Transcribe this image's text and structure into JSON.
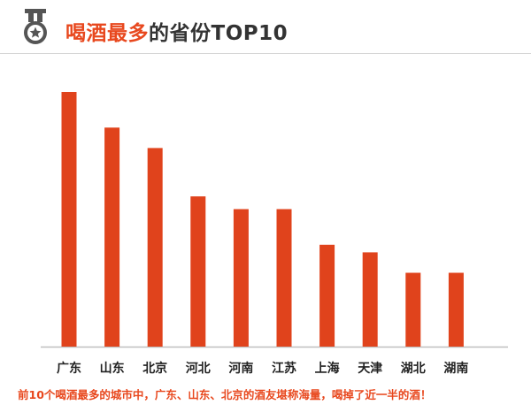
{
  "header": {
    "title_accent": "喝酒最多",
    "title_rest": "的省份TOP10",
    "icon": "medal-icon"
  },
  "colors": {
    "accent": "#e8481e",
    "bar": "#e0431c",
    "title_dark": "#333333"
  },
  "chart_data": {
    "type": "bar",
    "categories": [
      "广东",
      "山东",
      "北京",
      "河北",
      "河南",
      "江苏",
      "上海",
      "天津",
      "湖北",
      "湖南"
    ],
    "values": [
      100,
      86,
      78,
      59,
      54,
      54,
      40,
      37,
      29,
      29
    ],
    "ylim": [
      0,
      100
    ],
    "grid": false,
    "legend": "none"
  },
  "footnote": "前10个喝酒最多的城市中，广东、山东、北京的酒友堪称海量，喝掉了近一半的酒！"
}
